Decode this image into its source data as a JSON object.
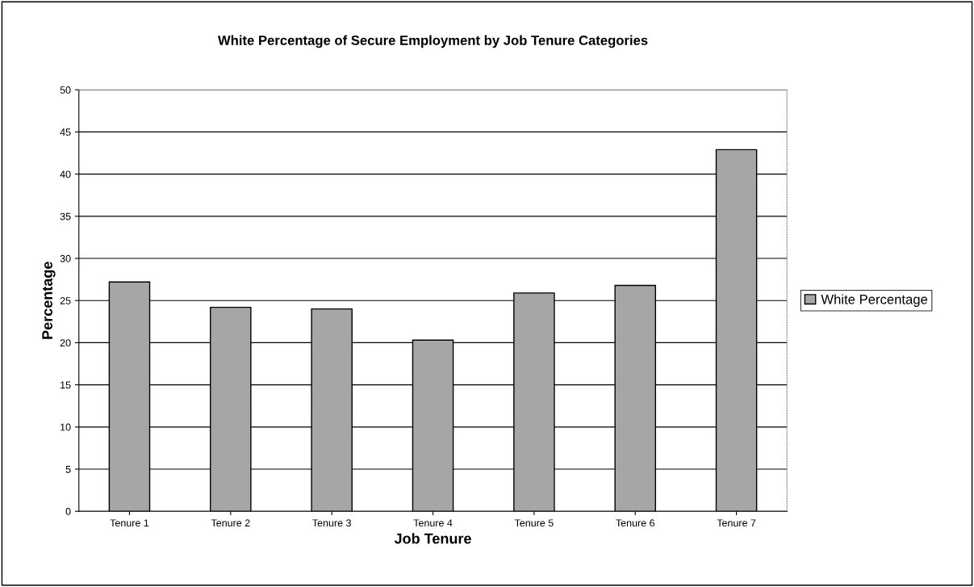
{
  "chart_data": {
    "type": "bar",
    "title": "White Percentage of Secure Employment by Job Tenure Categories",
    "xlabel": "Job Tenure",
    "ylabel": "Percentage",
    "categories": [
      "Tenure 1",
      "Tenure 2",
      "Tenure 3",
      "Tenure 4",
      "Tenure 5",
      "Tenure 6",
      "Tenure 7"
    ],
    "series": [
      {
        "name": "White Percentage",
        "color": "#a6a6a6",
        "values": [
          27.2,
          24.2,
          24.0,
          20.3,
          25.9,
          26.8,
          42.9
        ]
      }
    ],
    "ylim": [
      0,
      50
    ],
    "yticks": [
      0,
      5,
      10,
      15,
      20,
      25,
      30,
      35,
      40,
      45,
      50
    ],
    "grid": "y",
    "legend": "right"
  }
}
